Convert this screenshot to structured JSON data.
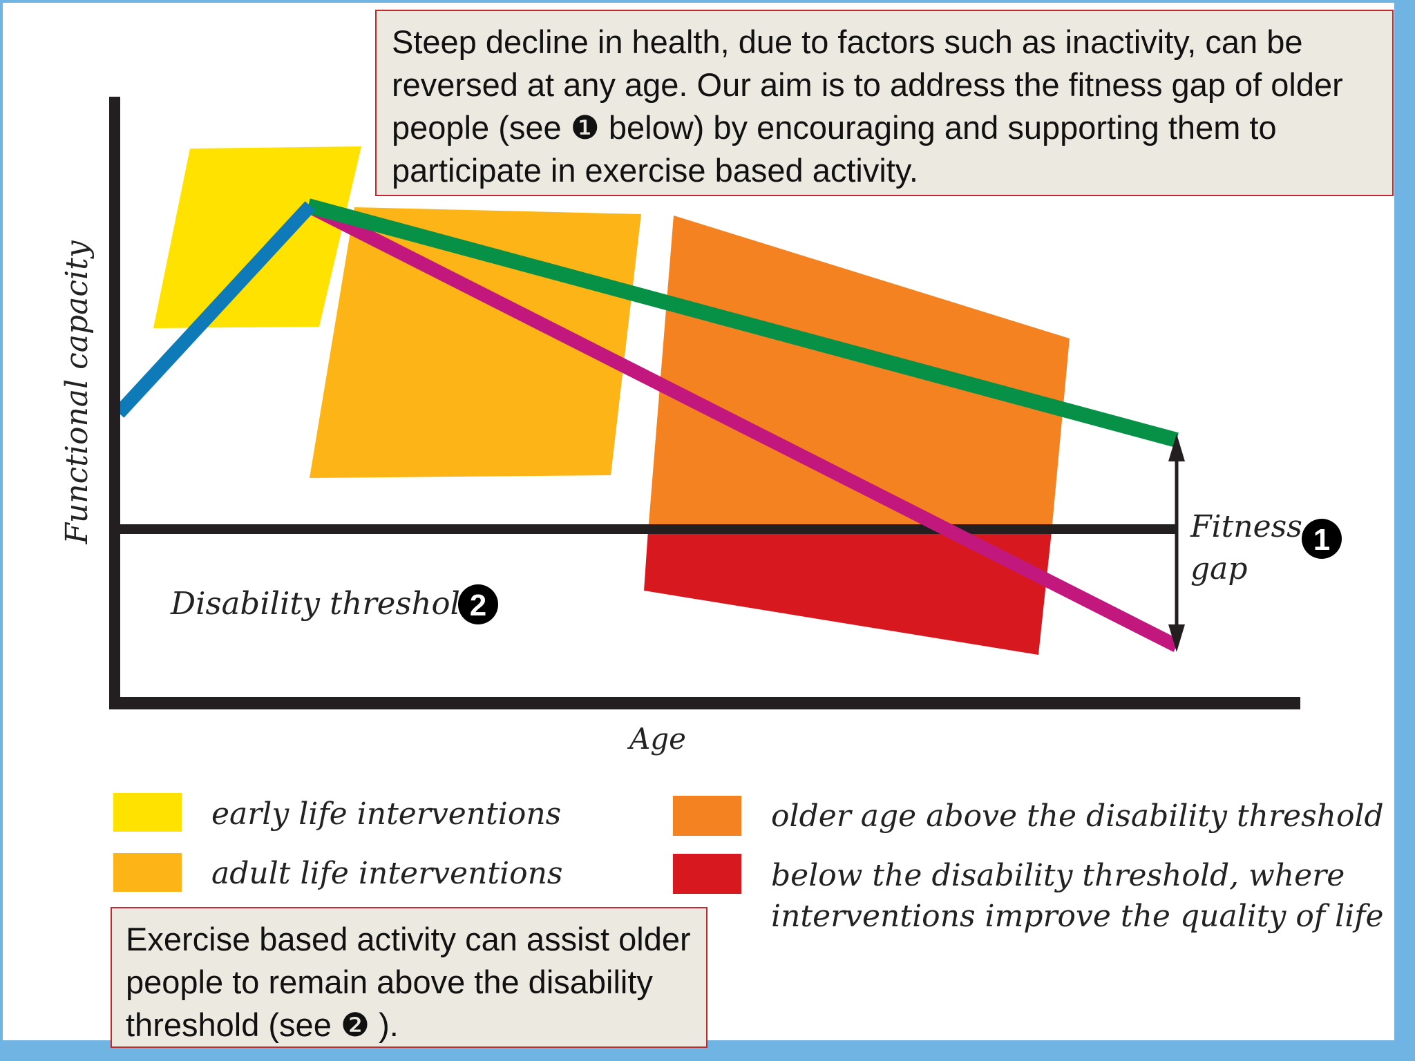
{
  "callouts": {
    "top_text": "Steep decline in health, due to factors such as inactivity, can be reversed at any age. Our aim is to address the fitness gap of older people (see ❶ below) by encouraging and supporting them to participate in exercise based activity.",
    "bottom_text": "Exercise based activity can assist older people to remain above the disability threshold (see ❷ )."
  },
  "axes": {
    "y_label": "Functional capacity",
    "x_label": "Age"
  },
  "annotations": {
    "disability_threshold": "Disability threshold",
    "fitness_line1": "Fitness",
    "fitness_line2": "gap",
    "marker_1": "1",
    "marker_2": "2"
  },
  "legend": {
    "items": [
      {
        "label": "early life interventions",
        "color": "#ffe200"
      },
      {
        "label": "adult life interventions",
        "color": "#fdb417"
      },
      {
        "label": "older age above the disability threshold",
        "color": "#f58220"
      },
      {
        "label_line1": "below the disability threshold, where",
        "label_line2": "interventions improve the quality of life",
        "color": "#d7191f"
      }
    ]
  },
  "colors": {
    "early_life": "#ffe200",
    "adult_life": "#fdb417",
    "older_age": "#f58220",
    "below_threshold": "#d7191f",
    "rise_line": "#0e7bb8",
    "active_line": "#079147",
    "inactive_line": "#c2187e",
    "axis": "#231f20",
    "frame": "#6fb4e2"
  }
}
